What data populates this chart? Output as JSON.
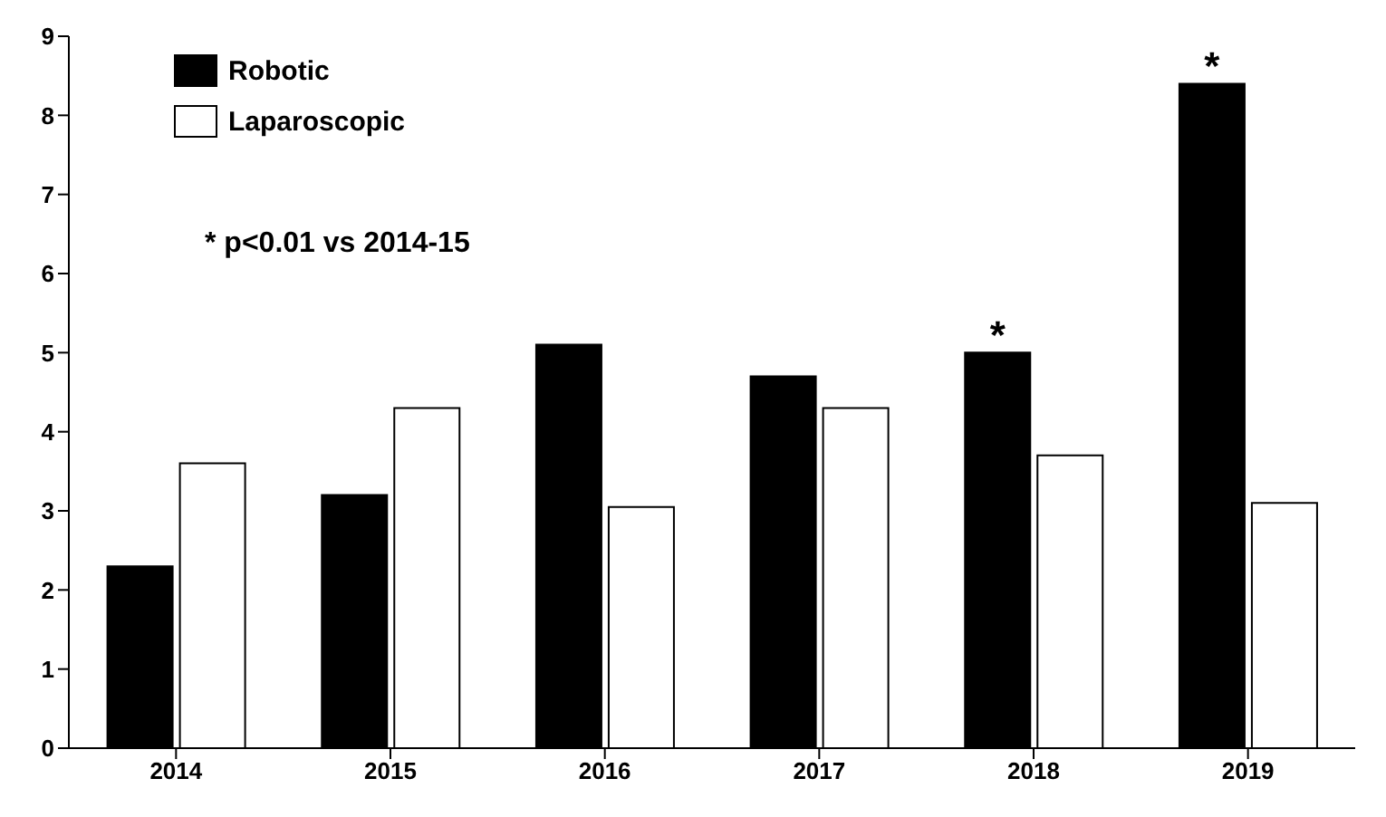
{
  "chart_data": {
    "type": "bar",
    "categories": [
      "2014",
      "2015",
      "2016",
      "2017",
      "2018",
      "2019"
    ],
    "series": [
      {
        "name": "Robotic",
        "color": "#000000",
        "values": [
          2.3,
          3.2,
          5.1,
          4.7,
          5.0,
          8.4
        ]
      },
      {
        "name": "Laparoscopic",
        "color": "#ffffff",
        "values": [
          3.6,
          4.3,
          3.05,
          4.3,
          3.7,
          3.1
        ]
      }
    ],
    "ylim": [
      0,
      9
    ],
    "yticks": [
      0,
      1,
      2,
      3,
      4,
      5,
      6,
      7,
      8,
      9
    ],
    "grid": false,
    "legend": "top left",
    "annotations": [
      "* p<0.01 vs 2014-15",
      {
        "text": "*",
        "x": "2018",
        "y": 5.0
      },
      {
        "text": "*",
        "x": "2019",
        "y": 8.4
      }
    ]
  }
}
